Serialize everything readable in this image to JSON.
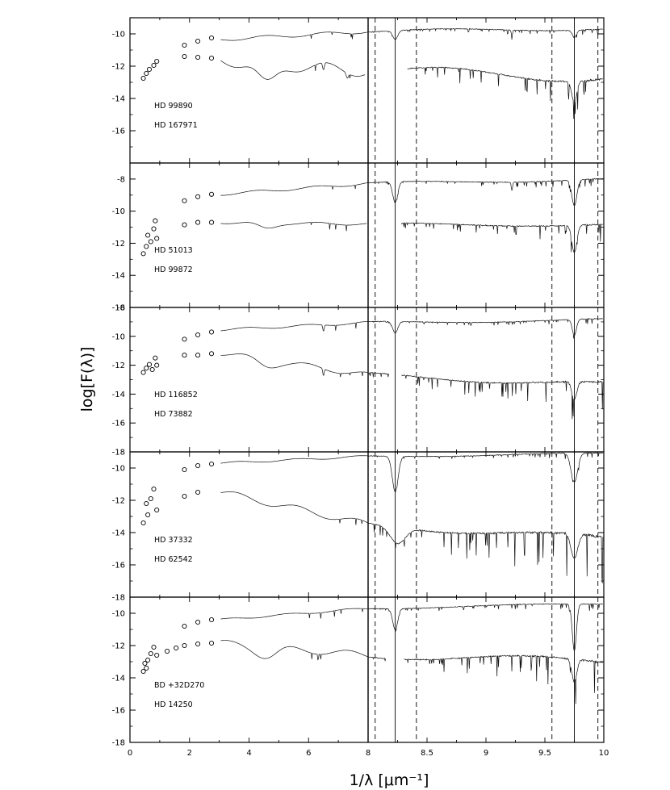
{
  "chart_data": {
    "type": "line",
    "xlabel": "1/λ [μm⁻¹]",
    "ylabel": "log[F(λ)]",
    "x_left_segment": {
      "xlim": [
        0,
        8
      ],
      "ticks": [
        "0",
        "2",
        "4",
        "6",
        "8"
      ]
    },
    "x_right_segment": {
      "xlim": [
        8,
        10
      ],
      "ticks": [
        "8.5",
        "9",
        "9.5",
        "10"
      ]
    },
    "reference_lines": {
      "solid_x": [
        8.23,
        9.75
      ],
      "dashed_x": [
        8.06,
        8.41,
        9.56,
        9.95
      ]
    },
    "panels": [
      {
        "ylim": [
          -18,
          -9
        ],
        "yticks": [
          -16,
          -14,
          -12,
          -10
        ],
        "labels": [
          "HD 99890",
          "HD 167971"
        ],
        "photometry": [
          {
            "series": "upper",
            "points": [
              [
                1.83,
                -10.7
              ],
              [
                2.28,
                -10.45
              ],
              [
                2.74,
                -10.25
              ]
            ]
          },
          {
            "series": "lower",
            "points": [
              [
                0.45,
                -12.75
              ],
              [
                0.55,
                -12.45
              ],
              [
                0.65,
                -12.2
              ],
              [
                0.8,
                -11.95
              ],
              [
                0.9,
                -11.7
              ],
              [
                1.83,
                -11.4
              ],
              [
                2.28,
                -11.45
              ],
              [
                2.74,
                -11.5
              ]
            ]
          }
        ],
        "spectra": [
          {
            "series": "upper",
            "start": -10.35,
            "end": -9.65,
            "wiggle": 0.1,
            "noise": 0.25,
            "lines": [
              [
                8.23,
                0.55,
                0.03
              ],
              [
                9.75,
                0.45,
                0.025
              ],
              [
                9.22,
                0.35,
                0.008
              ]
            ]
          },
          {
            "series": "lower",
            "start": -11.65,
            "end": -12.6,
            "wiggle": 0.35,
            "noise": 1.2,
            "bump": [
              4.6,
              0.028,
              1.3,
              0.45
            ],
            "lines": [
              [
                6.5,
                0.45,
                0.04
              ],
              [
                7.3,
                0.3,
                0.05
              ],
              [
                8.23,
                1.0,
                0.03
              ],
              [
                9.75,
                1.3,
                0.03
              ]
            ],
            "gap": [
              7.9,
              8.33
            ]
          }
        ]
      },
      {
        "ylim": [
          -16,
          -7
        ],
        "yticks": [
          -16,
          -14,
          -12,
          -10,
          -8
        ],
        "labels": [
          "HD 51013",
          "HD 99872"
        ],
        "photometry": [
          {
            "series": "upper",
            "points": [
              [
                1.83,
                -9.35
              ],
              [
                2.28,
                -9.1
              ],
              [
                2.74,
                -8.95
              ]
            ]
          },
          {
            "series": "lower",
            "points": [
              [
                0.45,
                -12.65
              ],
              [
                0.55,
                -12.2
              ],
              [
                0.6,
                -11.5
              ],
              [
                0.7,
                -11.9
              ],
              [
                0.8,
                -11.1
              ],
              [
                0.9,
                -11.7
              ],
              [
                0.85,
                -10.6
              ],
              [
                1.83,
                -10.85
              ],
              [
                2.28,
                -10.7
              ],
              [
                2.74,
                -10.7
              ]
            ]
          }
        ],
        "spectra": [
          {
            "series": "upper",
            "start": -8.95,
            "end": -8.0,
            "wiggle": 0.08,
            "noise": 0.3,
            "lines": [
              [
                8.23,
                1.3,
                0.03
              ],
              [
                9.75,
                1.6,
                0.03
              ],
              [
                9.22,
                0.5,
                0.008
              ]
            ]
          },
          {
            "series": "lower",
            "start": -10.7,
            "end": -10.85,
            "wiggle": 0.08,
            "noise": 0.7,
            "bump": [
              4.6,
              0.028,
              0.35,
              0.42
            ],
            "lines": [
              [
                8.23,
                4.9,
                0.025
              ],
              [
                9.75,
                1.7,
                0.03
              ]
            ],
            "gap": [
              7.95,
              8.28
            ]
          }
        ]
      },
      {
        "ylim": [
          -18,
          -8
        ],
        "yticks": [
          -18,
          -16,
          -14,
          -12,
          -10,
          -8
        ],
        "labels": [
          "HD 116852",
          "HD 73882"
        ],
        "photometry": [
          {
            "series": "upper",
            "points": [
              [
                1.83,
                -10.2
              ],
              [
                2.28,
                -9.9
              ],
              [
                2.74,
                -9.7
              ]
            ]
          },
          {
            "series": "lower",
            "points": [
              [
                0.45,
                -12.5
              ],
              [
                0.55,
                -12.2
              ],
              [
                0.65,
                -11.95
              ],
              [
                0.75,
                -12.3
              ],
              [
                0.85,
                -11.5
              ],
              [
                0.9,
                -12.0
              ],
              [
                1.83,
                -11.3
              ],
              [
                2.28,
                -11.3
              ],
              [
                2.74,
                -11.2
              ]
            ]
          }
        ],
        "spectra": [
          {
            "series": "upper",
            "start": -9.55,
            "end": -8.85,
            "wiggle": 0.08,
            "noise": 0.25,
            "lines": [
              [
                6.5,
                0.45,
                0.03
              ],
              [
                8.23,
                0.8,
                0.03
              ],
              [
                9.75,
                1.1,
                0.025
              ]
            ]
          },
          {
            "series": "lower",
            "start": -11.15,
            "end": -13.3,
            "wiggle": 0.18,
            "noise": 1.3,
            "bump": [
              4.6,
              0.028,
              0.4,
              0.45
            ],
            "lines": [
              [
                6.5,
                0.5,
                0.03
              ],
              [
                8.23,
                0.8,
                0.03
              ],
              [
                9.75,
                1.2,
                0.03
              ]
            ],
            "gap": [
              8.18,
              8.28
            ]
          }
        ]
      },
      {
        "ylim": [
          -18,
          -9
        ],
        "yticks": [
          -18,
          -16,
          -14,
          -12,
          -10
        ],
        "labels": [
          "HD 37332",
          "HD 62542"
        ],
        "photometry": [
          {
            "series": "upper",
            "points": [
              [
                1.83,
                -10.1
              ],
              [
                2.28,
                -9.85
              ],
              [
                2.74,
                -9.75
              ]
            ]
          },
          {
            "series": "lower",
            "points": [
              [
                0.45,
                -13.4
              ],
              [
                0.55,
                -12.2
              ],
              [
                0.6,
                -12.9
              ],
              [
                0.7,
                -11.9
              ],
              [
                0.8,
                -11.3
              ],
              [
                0.9,
                -12.6
              ],
              [
                1.83,
                -11.75
              ],
              [
                2.28,
                -11.5
              ]
            ]
          }
        ],
        "spectra": [
          {
            "series": "upper",
            "start": -9.7,
            "end": -9.1,
            "wiggle": 0.06,
            "noise": 0.25,
            "lines": [
              [
                8.23,
                2.2,
                0.035
              ],
              [
                9.75,
                1.8,
                0.04
              ]
            ]
          },
          {
            "series": "lower",
            "start": -11.5,
            "end": -14.3,
            "wiggle": 0.2,
            "noise": 2.0,
            "lines": [
              [
                8.25,
                1.0,
                0.09
              ],
              [
                9.75,
                1.5,
                0.04
              ]
            ]
          }
        ]
      },
      {
        "ylim": [
          -18,
          -9
        ],
        "yticks": [
          -18,
          -16,
          -14,
          -12,
          -10
        ],
        "labels": [
          "BD +32D270",
          "HD 14250"
        ],
        "photometry": [
          {
            "series": "upper",
            "points": [
              [
                1.83,
                -10.8
              ],
              [
                2.28,
                -10.55
              ],
              [
                2.74,
                -10.4
              ]
            ]
          },
          {
            "series": "lower",
            "points": [
              [
                0.45,
                -13.6
              ],
              [
                0.5,
                -13.1
              ],
              [
                0.55,
                -13.4
              ],
              [
                0.6,
                -12.9
              ],
              [
                0.7,
                -12.5
              ],
              [
                0.8,
                -12.1
              ],
              [
                0.9,
                -12.6
              ],
              [
                1.25,
                -12.35
              ],
              [
                1.55,
                -12.15
              ],
              [
                1.83,
                -12.0
              ],
              [
                2.28,
                -11.9
              ],
              [
                2.74,
                -11.85
              ]
            ]
          }
        ],
        "spectra": [
          {
            "series": "upper",
            "start": -10.4,
            "end": -9.4,
            "wiggle": 0.06,
            "noise": 0.3,
            "lines": [
              [
                8.23,
                1.3,
                0.03
              ],
              [
                9.75,
                2.9,
                0.025
              ]
            ]
          },
          {
            "series": "lower",
            "start": -11.85,
            "end": -12.9,
            "wiggle": 0.2,
            "noise": 1.4,
            "bump": [
              4.6,
              0.028,
              0.6,
              0.5
            ],
            "lines": [
              [
                9.75,
                1.4,
                0.03
              ]
            ],
            "gap": [
              8.15,
              8.3
            ]
          }
        ]
      }
    ]
  }
}
